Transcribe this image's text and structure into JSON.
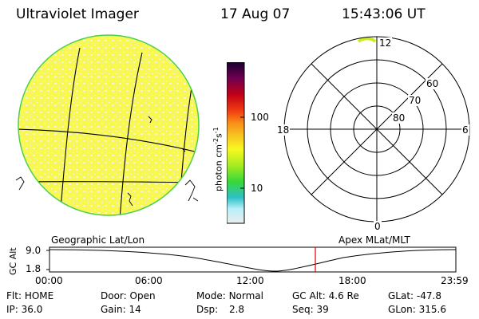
{
  "header": {
    "title": "Ultraviolet Imager",
    "date": "17 Aug 07",
    "time": "15:43:06 UT"
  },
  "colorbar": {
    "label": "photon cm",
    "label_sup1": "-2",
    "label_mid": "s",
    "label_sup2": "-1",
    "ticks": [
      "100",
      "10"
    ],
    "colors": [
      "#ececec",
      "#b8f0f8",
      "#2ec0c8",
      "#38d838",
      "#c8ee20",
      "#f8f820",
      "#f8c020",
      "#f89018",
      "#f03c10",
      "#c00018",
      "#700050",
      "#180030"
    ]
  },
  "globe_panel": {
    "label": "Geographic Lat/Lon",
    "fill_color": "#f8f850",
    "speckle_color": "#f0f0d0",
    "limb_color": "#4ad04a"
  },
  "polar_panel": {
    "label": "Apex MLat/MLT",
    "mlt_labels": [
      "12",
      "18",
      "6",
      "0"
    ],
    "lat_labels": [
      "60",
      "70",
      "80"
    ]
  },
  "altitude_plot": {
    "ylabel": "GC Alt",
    "yticks": [
      "9.0",
      "1.8"
    ],
    "xticks": [
      "00:00",
      "06:00",
      "12:00",
      "18:00",
      "23:59"
    ],
    "current_time_marker_color": "#e00000"
  },
  "status": {
    "row1": [
      {
        "key": "Flt:",
        "value": "HOME"
      },
      {
        "key": "Door:",
        "value": "Open"
      },
      {
        "key": "Mode:",
        "value": "Normal"
      },
      {
        "key": "GC Alt:",
        "value": "4.6 Re"
      },
      {
        "key": "GLat:",
        "value": "-47.8"
      }
    ],
    "row2": [
      {
        "key": "IP:",
        "value": "36.0"
      },
      {
        "key": "Gain:",
        "value": "14"
      },
      {
        "key": "Dsp:",
        "value": "2.8"
      },
      {
        "key": "Seq:",
        "value": "39"
      },
      {
        "key": "GLon:",
        "value": "315.6"
      }
    ]
  }
}
